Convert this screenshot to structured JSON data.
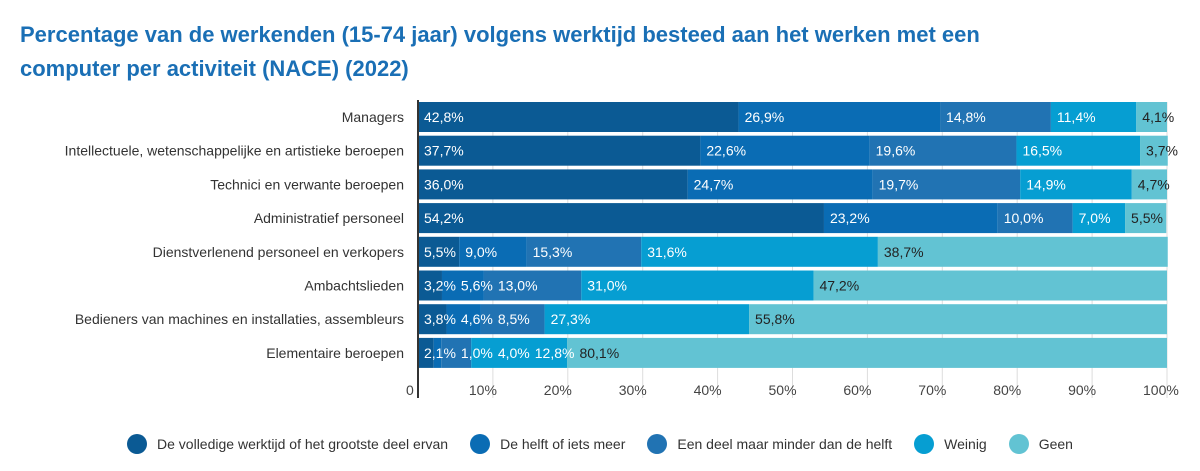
{
  "chart_data": {
    "type": "bar",
    "orientation": "horizontal",
    "stacked": true,
    "title": "Percentage van de werkenden (15-74 jaar) volgens werktijd besteed aan het werken met een computer per activiteit (NACE) (2022)",
    "categories": [
      "Managers",
      "Intellectuele, wetenschappelijke en artistieke beroepen",
      "Technici en verwante beroepen",
      "Administratief personeel",
      "Dienstverlenend personeel en verkopers",
      "Ambachtslieden",
      "Bedieners van machines en installaties, assembleurs",
      "Elementaire beroepen"
    ],
    "series": [
      {
        "name": "De volledige werktijd of het grootste deel ervan",
        "color": "#0b5a94",
        "label_color": "#ffffff",
        "values": [
          42.8,
          37.7,
          36.0,
          54.2,
          5.5,
          3.2,
          3.8,
          2.1
        ],
        "labels": [
          "42,8%",
          "37,7%",
          "36,0%",
          "54,2%",
          "5,5%",
          "3,2%",
          "3,8%",
          "2,1%"
        ]
      },
      {
        "name": "De helft of iets meer",
        "color": "#0a6cb4",
        "label_color": "#ffffff",
        "values": [
          26.9,
          22.6,
          24.7,
          23.2,
          9.0,
          5.6,
          4.6,
          1.0
        ],
        "labels": [
          "26,9%",
          "22,6%",
          "24,7%",
          "23,2%",
          "9,0%",
          "5,6%",
          "4,6%",
          "1,0%"
        ]
      },
      {
        "name": "Een deel maar minder dan de helft",
        "color": "#2173b3",
        "label_color": "#ffffff",
        "values": [
          14.8,
          19.6,
          19.7,
          10.0,
          15.3,
          13.0,
          8.5,
          4.0
        ],
        "labels": [
          "14,8%",
          "19,6%",
          "19,7%",
          "10,0%",
          "15,3%",
          "13,0%",
          "8,5%",
          "4,0%"
        ]
      },
      {
        "name": "Weinig",
        "color": "#069ed2",
        "label_color": "#ffffff",
        "values": [
          11.4,
          16.5,
          14.9,
          7.0,
          31.6,
          31.0,
          27.3,
          12.8
        ],
        "labels": [
          "11,4%",
          "16,5%",
          "14,9%",
          "7,0%",
          "31,6%",
          "31,0%",
          "27,3%",
          "12,8%"
        ]
      },
      {
        "name": "Geen",
        "color": "#62c3d3",
        "label_color": "#222222",
        "values": [
          4.1,
          3.7,
          4.7,
          5.5,
          38.7,
          47.2,
          55.8,
          80.1
        ],
        "labels": [
          "4,1%",
          "3,7%",
          "4,7%",
          "5,5%",
          "38,7%",
          "47,2%",
          "55,8%",
          "80,1%"
        ]
      }
    ],
    "xlim": [
      0,
      100
    ],
    "xticks": [
      "0",
      "10%",
      "20%",
      "30%",
      "40%",
      "50%",
      "60%",
      "70%",
      "80%",
      "90%",
      "100%"
    ],
    "grid": true,
    "legend_position": "bottom"
  }
}
